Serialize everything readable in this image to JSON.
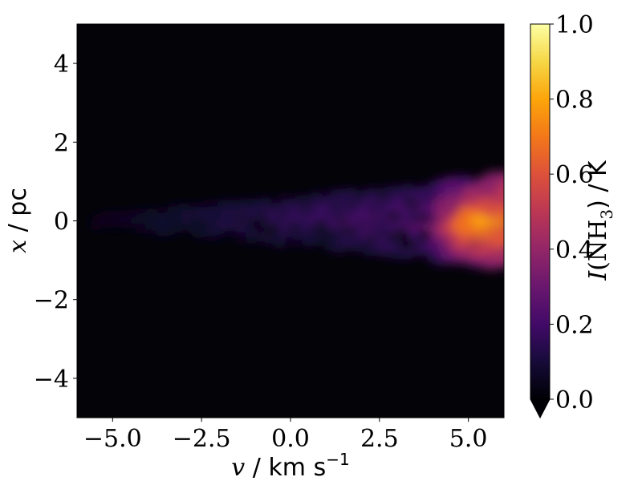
{
  "chart_data": {
    "type": "heatmap",
    "xlabel": {
      "var": "v",
      "sep": " / ",
      "unit": "km s",
      "exp": "−1"
    },
    "ylabel": {
      "var": "x",
      "sep": " / ",
      "unit": "pc"
    },
    "xlim": [
      -6.0,
      6.0
    ],
    "ylim": [
      -5.0,
      5.0
    ],
    "xticks": [
      -5.0,
      -2.5,
      0.0,
      2.5,
      5.0
    ],
    "xtick_labels": [
      "−5.0",
      "−2.5",
      "0.0",
      "2.5",
      "5.0"
    ],
    "yticks": [
      -4,
      -2,
      0,
      2,
      4
    ],
    "ytick_labels": [
      "−4",
      "−2",
      "0",
      "2",
      "4"
    ],
    "colorbar": {
      "label": {
        "var": "I",
        "open": "(NH",
        "sub": "3",
        "close": ") / K"
      },
      "range": [
        0.0,
        1.0
      ],
      "ticks": [
        0.0,
        0.2,
        0.4,
        0.6,
        0.8,
        1.0
      ],
      "tick_labels": [
        "0.0",
        "0.2",
        "0.4",
        "0.6",
        "0.8",
        "1.0"
      ],
      "colormap": "inferno",
      "extend": "min"
    },
    "emission_peak": {
      "v": 5.1,
      "x": -0.2,
      "intensity": 0.6
    },
    "background_color": "#040308"
  }
}
